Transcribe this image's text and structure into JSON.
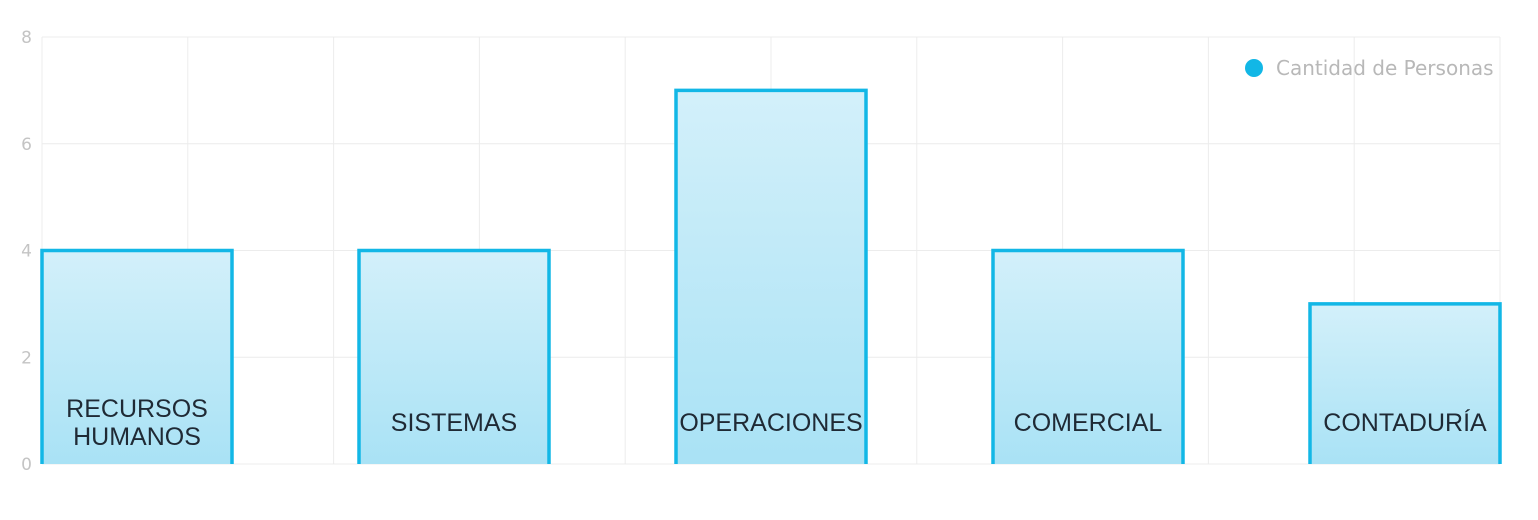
{
  "chart_data": {
    "type": "bar",
    "categories": [
      "RECURSOS HUMANOS",
      "SISTEMAS",
      "OPERACIONES",
      "COMERCIAL",
      "CONTADURÍA"
    ],
    "series": [
      {
        "name": "Cantidad de Personas",
        "values": [
          4,
          4,
          7,
          4,
          3
        ]
      }
    ],
    "ylim": [
      0,
      8
    ],
    "yticks": [
      0,
      2,
      4,
      6,
      8
    ],
    "grid": true,
    "legend_position": "top-right",
    "colors": {
      "bar_stroke": "#12b7e6",
      "bar_fill_top": "#d3f0fa",
      "bar_fill_bottom": "#a9e2f5",
      "legend_dot": "#12b7e6"
    }
  }
}
